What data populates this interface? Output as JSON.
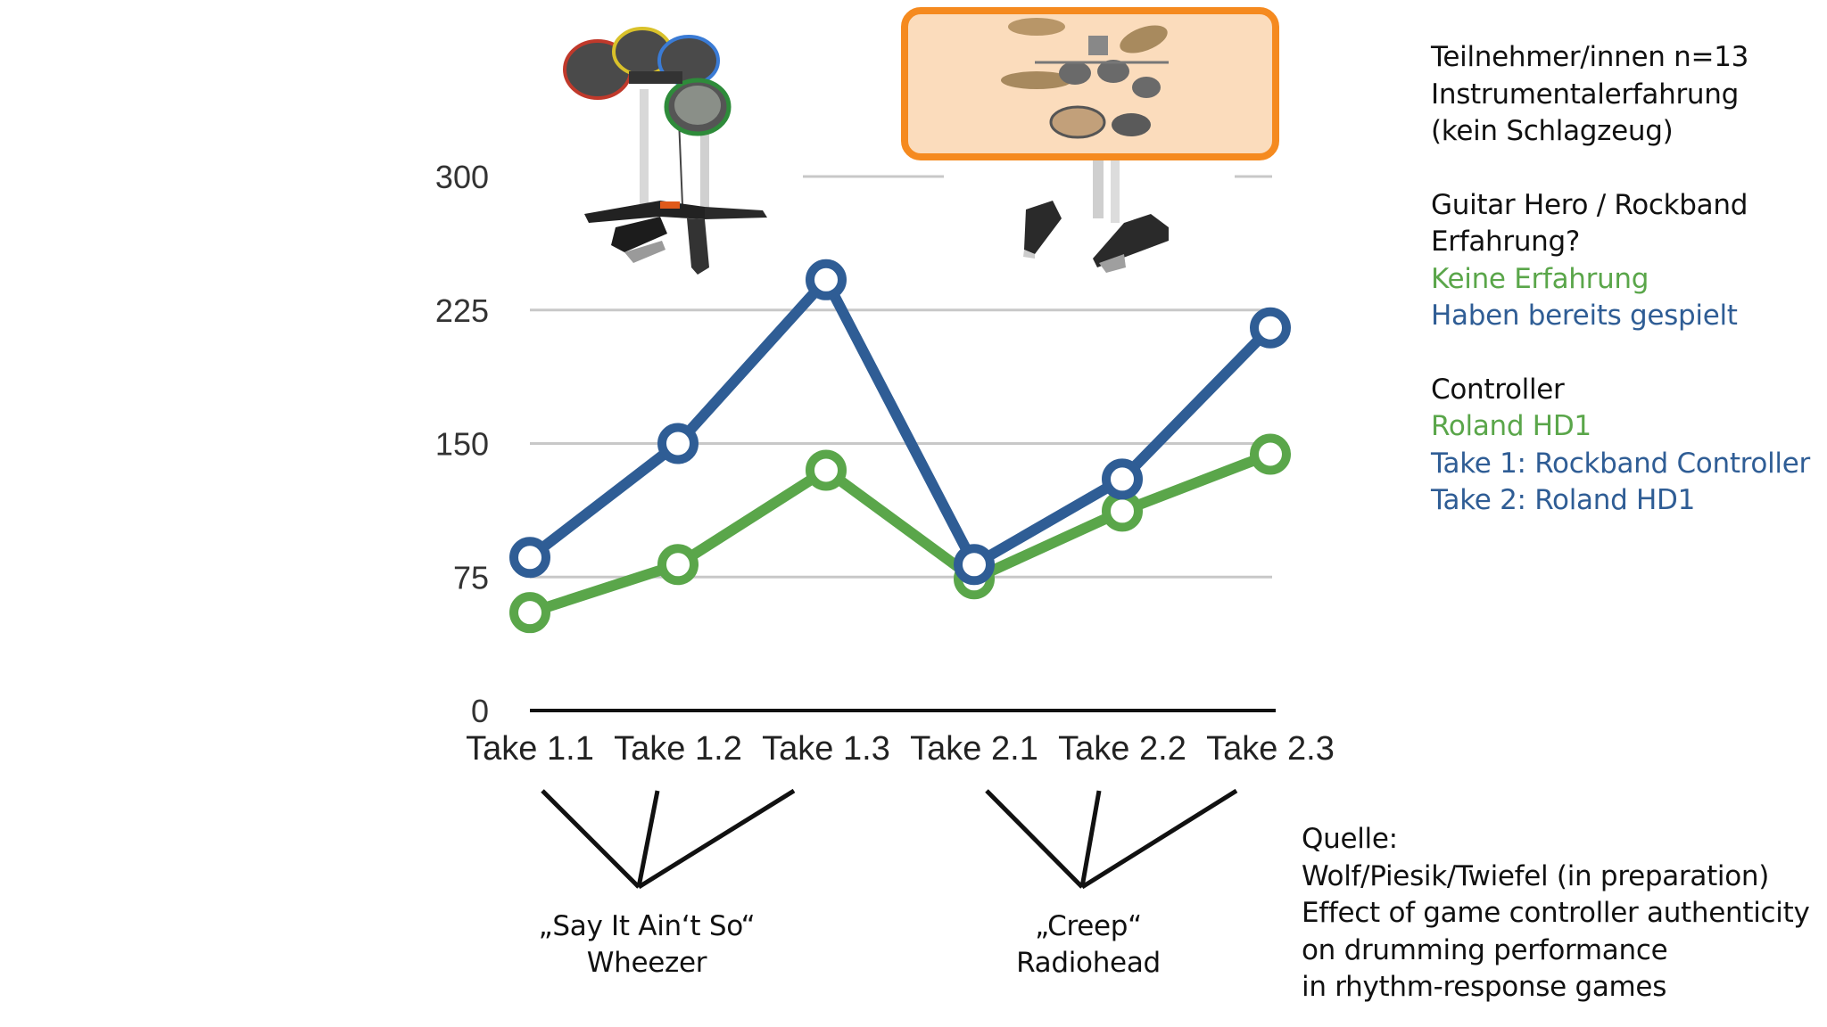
{
  "chart_data": {
    "type": "line",
    "categories": [
      "Take 1.1",
      "Take 1.2",
      "Take 1.3",
      "Take 2.1",
      "Take 2.2",
      "Take 2.3"
    ],
    "series": [
      {
        "name": "Haben bereits gespielt",
        "color": "#2f5d95",
        "values": [
          86,
          150,
          242,
          82,
          130,
          215
        ]
      },
      {
        "name": "Keine Erfahrung",
        "color": "#5aa64a",
        "values": [
          55,
          82,
          135,
          74,
          112,
          144
        ]
      }
    ],
    "yticks": [
      0,
      75,
      150,
      225,
      300
    ],
    "ylim": [
      0,
      300
    ],
    "grid": true,
    "title": "",
    "xlabel": "",
    "ylabel": ""
  },
  "info": {
    "participants": [
      "Teilnehmer/innen n=13",
      "Instrumentalerfahrung",
      "(kein Schlagzeug)"
    ],
    "experience_title": [
      "Guitar Hero / Rockband",
      "Erfahrung?"
    ],
    "experience_none": "Keine Erfahrung",
    "experience_played": "Haben bereits gespielt",
    "controller_title": "Controller",
    "controller_roland": "Roland HD1",
    "controller_take1": "Take 1: Rockband Controller",
    "controller_take2": "Take 2: Roland HD1"
  },
  "songs": [
    {
      "title": "„Say It Ain‘t So“",
      "artist": "Wheezer"
    },
    {
      "title": "„Creep“",
      "artist": "Radiohead"
    }
  ],
  "source": [
    "Quelle:",
    "Wolf/Piesik/Twiefel (in preparation)",
    "Effect of game controller authenticity",
    "on drumming performance",
    "in rhythm-response games"
  ],
  "images": {
    "left": "rockband-drum-controller",
    "right": "roland-hd1-drum-kit",
    "highlight_color": "#f58a1f"
  }
}
